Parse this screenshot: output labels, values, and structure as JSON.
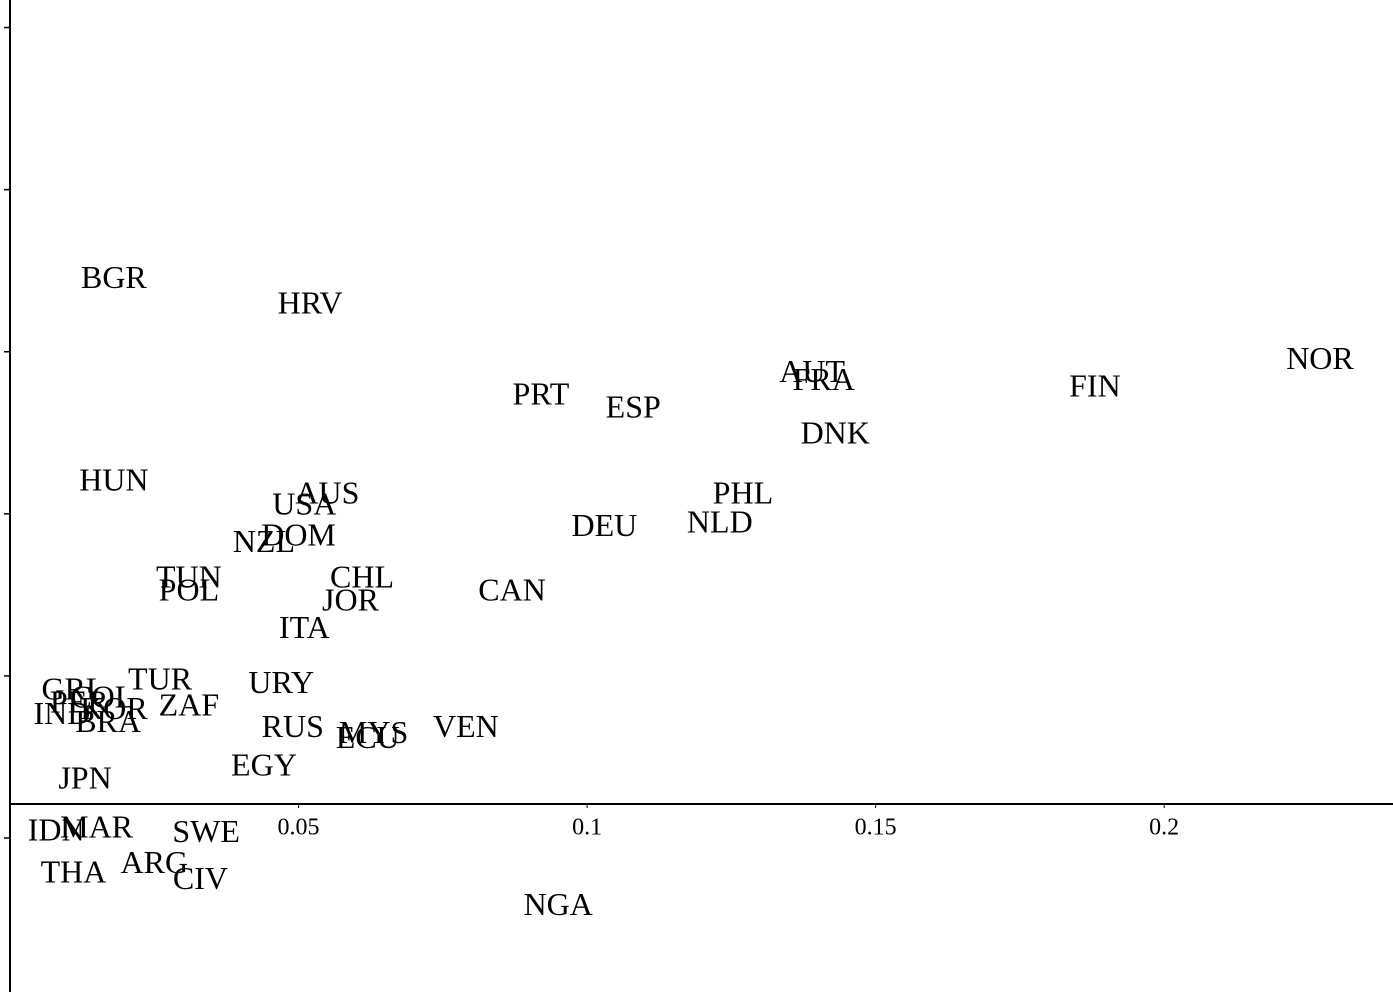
{
  "chart_data": {
    "type": "scatter",
    "point_style": "text",
    "color": "#000000",
    "labels": [
      "BGR",
      "HRV",
      "NOR",
      "AUT",
      "FRA",
      "FIN",
      "PRT",
      "ESP",
      "DNK",
      "HUN",
      "AUS",
      "PHL",
      "USA",
      "NLD",
      "DEU",
      "DOM",
      "NZL",
      "TUN",
      "CHL",
      "POL",
      "CAN",
      "JOR",
      "ITA",
      "TUR",
      "URY",
      "GRL",
      "COL",
      "PER",
      "KOR",
      "ZAF",
      "IND",
      "BRA",
      "RUS",
      "VEN",
      "MYS",
      "ECU",
      "EGY",
      "JPN",
      "MAR",
      "IDN",
      "SWE",
      "ARG",
      "THA",
      "CIV",
      "NGA"
    ],
    "x": [
      0.018,
      0.052,
      0.227,
      0.139,
      0.141,
      0.188,
      0.092,
      0.108,
      0.143,
      0.018,
      0.055,
      0.127,
      0.051,
      0.123,
      0.103,
      0.05,
      0.044,
      0.031,
      0.061,
      0.031,
      0.087,
      0.059,
      0.051,
      0.026,
      0.047,
      0.011,
      0.016,
      0.012,
      0.018,
      0.031,
      0.009,
      0.017,
      0.049,
      0.079,
      0.063,
      0.062,
      0.044,
      0.013,
      0.015,
      0.008,
      0.034,
      0.025,
      0.011,
      0.033,
      0.095
    ],
    "values": [
      0.323,
      0.307,
      0.273,
      0.265,
      0.26,
      0.256,
      0.251,
      0.243,
      0.227,
      0.198,
      0.19,
      0.19,
      0.183,
      0.172,
      0.17,
      0.164,
      0.16,
      0.138,
      0.138,
      0.13,
      0.13,
      0.124,
      0.107,
      0.075,
      0.073,
      0.069,
      0.064,
      0.061,
      0.057,
      0.059,
      0.054,
      0.049,
      0.046,
      0.046,
      0.042,
      0.039,
      0.022,
      0.014,
      -0.016,
      -0.018,
      -0.019,
      -0.038,
      -0.044,
      -0.048,
      -0.064
    ],
    "xlim": [
      0,
      0.24
    ],
    "xticks": [
      0.05,
      0.1,
      0.15,
      0.2
    ],
    "ylim": [
      -0.116,
      0.496
    ],
    "yticks": [
      -0.021,
      0.079,
      0.179,
      0.279,
      0.379,
      0.479
    ]
  }
}
